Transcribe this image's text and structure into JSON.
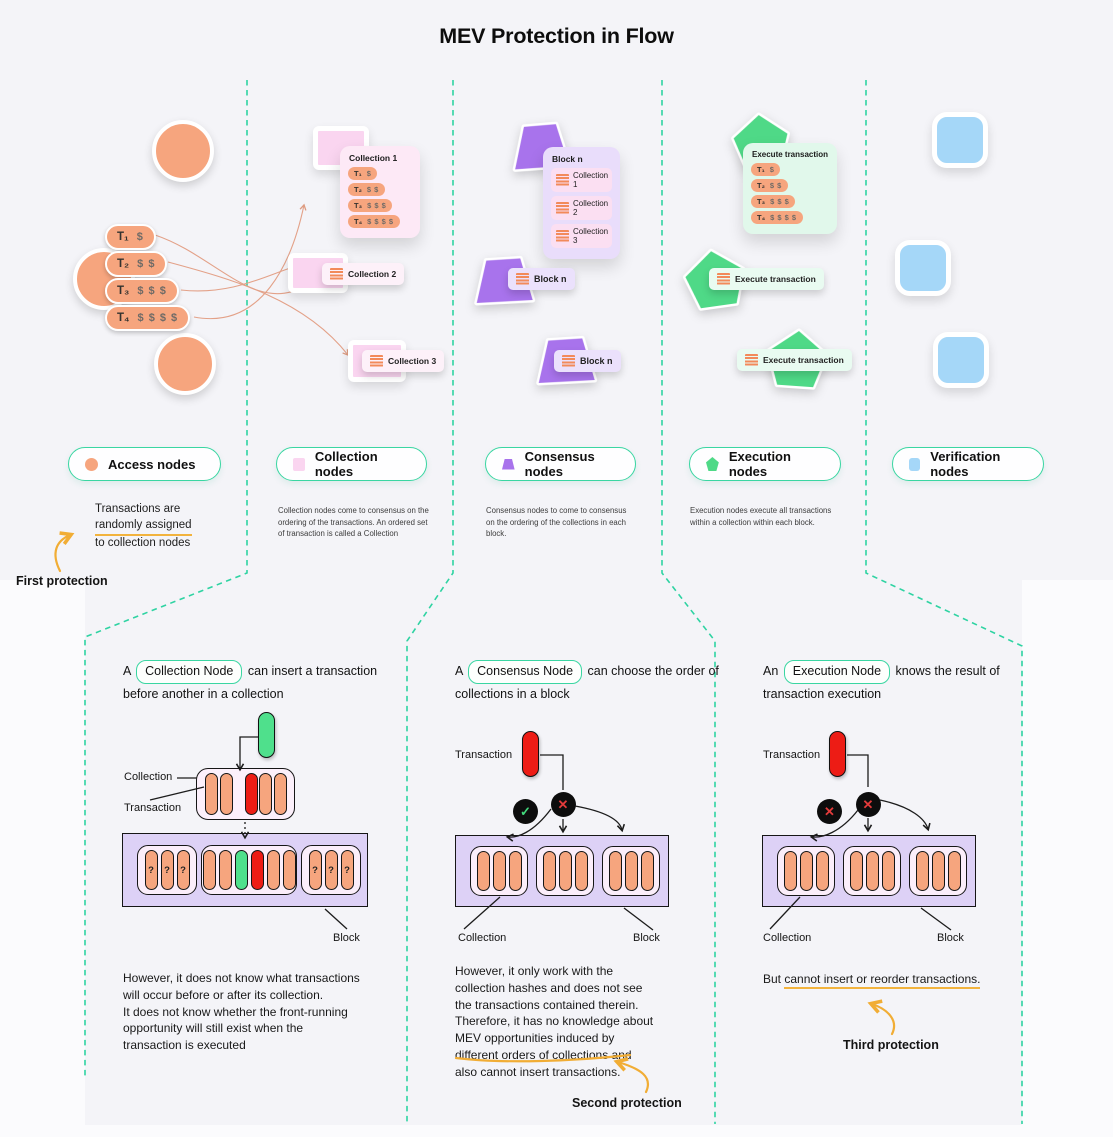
{
  "title": "MEV Protection in Flow",
  "transactions": [
    {
      "id": "T₁",
      "amount": "$"
    },
    {
      "id": "T₂",
      "amount": "$ $"
    },
    {
      "id": "T₃",
      "amount": "$ $ $"
    },
    {
      "id": "T₄",
      "amount": "$ $ $ $"
    }
  ],
  "legend": {
    "access": "Access nodes",
    "collection": "Collection nodes",
    "consensus": "Consensus nodes",
    "execution": "Execution nodes",
    "verification": "Verification nodes"
  },
  "descriptions": {
    "access_lines": [
      "Transactions are",
      "randomly assigned",
      "to collection nodes"
    ],
    "collection": "Collection nodes come to consensus on the ordering of the transactions. An ordered set of transaction is called a Collection",
    "consensus": "Consensus nodes to come to consensus on the ordering of the collections in each block.",
    "execution": "Execution nodes execute all transactions within a collection within each block."
  },
  "collection_items": [
    "Collection 1",
    "Collection 2",
    "Collection 3"
  ],
  "block_label": "Block n",
  "execute_label": "Execute transaction",
  "protections": {
    "first": "First protection",
    "second": "Second protection",
    "third": "Third protection"
  },
  "icons": {
    "check": "✓",
    "cross": "✕"
  },
  "panels": [
    {
      "prefix": "A",
      "node": "Collection Node",
      "suffix": "can insert a transaction before another in a collection",
      "collection_label": "Collection",
      "transaction_label": "Transaction",
      "block_label": "Block",
      "q": "?",
      "body_lines": [
        "However, it does not know what transactions",
        "will occur before or after its collection.",
        "It does not know whether the front-running",
        "opportunity will still exist when the",
        "transaction is executed"
      ]
    },
    {
      "prefix": "A",
      "node": "Consensus Node",
      "suffix": "can choose the order of collections in a block",
      "transaction_label": "Transaction",
      "collection_label": "Collection",
      "block_label": "Block",
      "body_lines": [
        "However, it only work with the",
        "collection hashes and does not see",
        "the transactions contained therein.",
        "Therefore, it has no knowledge about",
        "MEV opportunities induced by",
        "different orders of collections and",
        "also cannot insert transactions."
      ]
    },
    {
      "prefix": "An",
      "node": "Execution Node",
      "suffix": "knows the result of transaction execution",
      "transaction_label": "Transaction",
      "collection_label": "Collection",
      "block_label": "Block",
      "body_prefix": "But ",
      "body_underlined": "cannot insert or reorder transactions."
    }
  ],
  "colors": {
    "accent_teal": "#2ed3a2",
    "orange": "#f6a57e",
    "pink": "#fad5f0",
    "purple": "#a873ec",
    "green": "#4fd987",
    "blue": "#a5d7f8",
    "yellow": "#f1ad35",
    "red": "#ed1c15"
  }
}
